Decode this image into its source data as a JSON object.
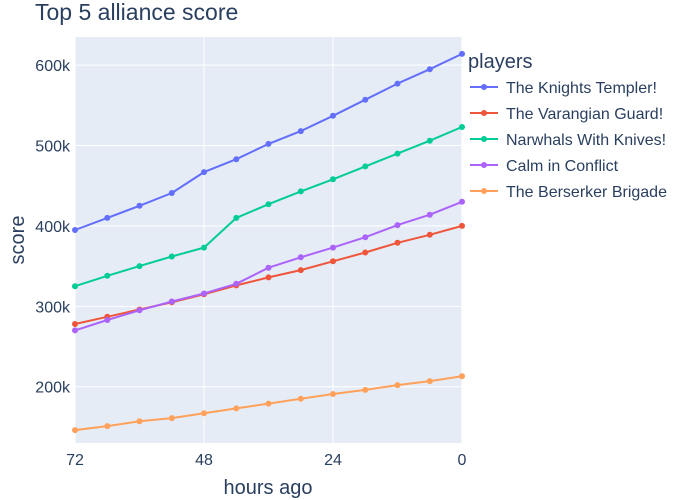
{
  "chart_data": {
    "type": "line",
    "title": "Top 5 alliance score",
    "xlabel": "hours ago",
    "ylabel": "score",
    "x": [
      72,
      66,
      60,
      54,
      48,
      42,
      36,
      30,
      24,
      18,
      12,
      6,
      0
    ],
    "x_ticks": [
      72,
      48,
      24,
      0
    ],
    "x_tick_labels": [
      "72",
      "48",
      "24",
      "0"
    ],
    "xlim": [
      72,
      0
    ],
    "x_reversed": true,
    "y_ticks": [
      200000,
      300000,
      400000,
      500000,
      600000
    ],
    "y_tick_labels": [
      "200k",
      "300k",
      "400k",
      "500k",
      "600k"
    ],
    "ylim": [
      130000,
      635000
    ],
    "grid": true,
    "legend_title": "players",
    "legend_position": "right",
    "plot_background": "#e5ecf6",
    "series": [
      {
        "name": "The Knights Templer!",
        "color": "#636efa",
        "values": [
          395000,
          410000,
          425000,
          441000,
          467000,
          483000,
          502000,
          518000,
          537000,
          557000,
          577000,
          595000,
          614000
        ]
      },
      {
        "name": "The Varangian Guard!",
        "color": "#ef553b",
        "values": [
          278000,
          287000,
          296000,
          305000,
          315000,
          326000,
          336000,
          345000,
          356000,
          367000,
          379000,
          389000,
          400000
        ]
      },
      {
        "name": "Narwhals With Knives!",
        "color": "#00cc96",
        "values": [
          325000,
          338000,
          350000,
          362000,
          373000,
          410000,
          427000,
          443000,
          458000,
          474000,
          490000,
          506000,
          523000
        ]
      },
      {
        "name": "Calm in Conflict",
        "color": "#ab63fa",
        "values": [
          270000,
          283000,
          295000,
          306000,
          316000,
          328000,
          348000,
          361000,
          373000,
          386000,
          401000,
          414000,
          430000
        ]
      },
      {
        "name": "The Berserker Brigade",
        "color": "#ffa15a",
        "values": [
          146000,
          151000,
          157000,
          161000,
          167000,
          173000,
          179000,
          185000,
          191000,
          196000,
          202000,
          207000,
          213000
        ]
      }
    ]
  }
}
